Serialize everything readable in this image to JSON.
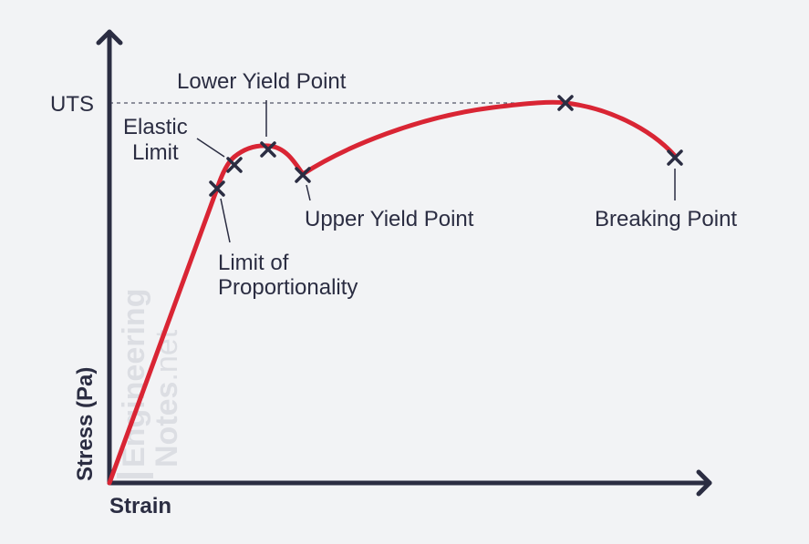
{
  "labels": {
    "uts": "UTS",
    "lower_yield_point": "Lower Yield Point",
    "elastic_limit_line1": "Elastic",
    "elastic_limit_line2": "Limit",
    "upper_yield_point": "Upper Yield Point",
    "limit_of_proportionality_line1": "Limit of",
    "limit_of_proportionality_line2": "Proportionality",
    "breaking_point": "Breaking Point"
  },
  "axes": {
    "x_label": "Strain",
    "y_label": "Stress (Pa)"
  },
  "watermark": {
    "line1": "Engineering",
    "line2_bold": "Notes",
    "line2_thin": ".net"
  },
  "colors": {
    "curve": "#d92534",
    "ink": "#2b2d42",
    "background": "#f2f3f5",
    "watermark": "#dcdee3"
  }
}
